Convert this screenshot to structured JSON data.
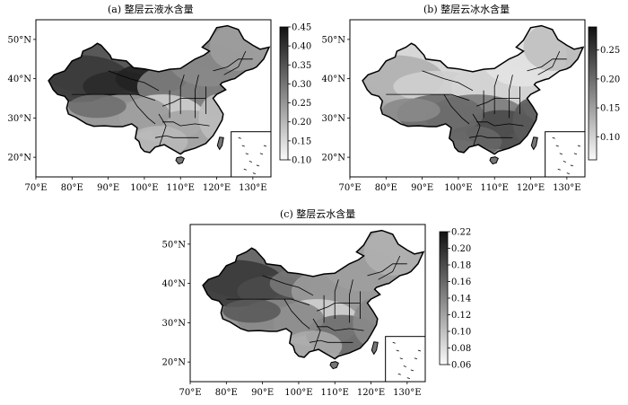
{
  "panels": [
    {
      "id": "a",
      "title": "(a) 整层云液水含量",
      "colorbar": {
        "min": 0.1,
        "max": 0.45,
        "ticks": [
          "0.45",
          "0.40",
          "0.35",
          "0.30",
          "0.25",
          "0.20",
          "0.15",
          "0.10"
        ]
      },
      "xticks": [
        "70°E",
        "80°E",
        "90°E",
        "100°E",
        "110°E",
        "120°E",
        "130°E"
      ],
      "yticks": [
        "50°N",
        "40°N",
        "30°N",
        "20°N"
      ]
    },
    {
      "id": "b",
      "title": "(b) 整层云冰水含量",
      "colorbar": {
        "min": 0.06,
        "max": 0.29,
        "ticks": [
          "0.25",
          "0.20",
          "0.15",
          "0.10"
        ]
      },
      "xticks": [
        "70°E",
        "80°E",
        "90°E",
        "100°E",
        "110°E",
        "120°E",
        "130°E"
      ],
      "yticks": [
        "50°N",
        "40°N",
        "30°N",
        "20°N"
      ]
    },
    {
      "id": "c",
      "title": "(c) 整层云水含量",
      "colorbar": {
        "min": 0.06,
        "max": 0.22,
        "ticks": [
          "0.22",
          "0.20",
          "0.18",
          "0.16",
          "0.14",
          "0.12",
          "0.10",
          "0.08",
          "0.06"
        ]
      },
      "xticks": [
        "70°E",
        "80°E",
        "90°E",
        "100°E",
        "110°E",
        "120°E",
        "130°E"
      ],
      "yticks": [
        "50°N",
        "40°N",
        "30°N",
        "20°N"
      ]
    }
  ]
}
